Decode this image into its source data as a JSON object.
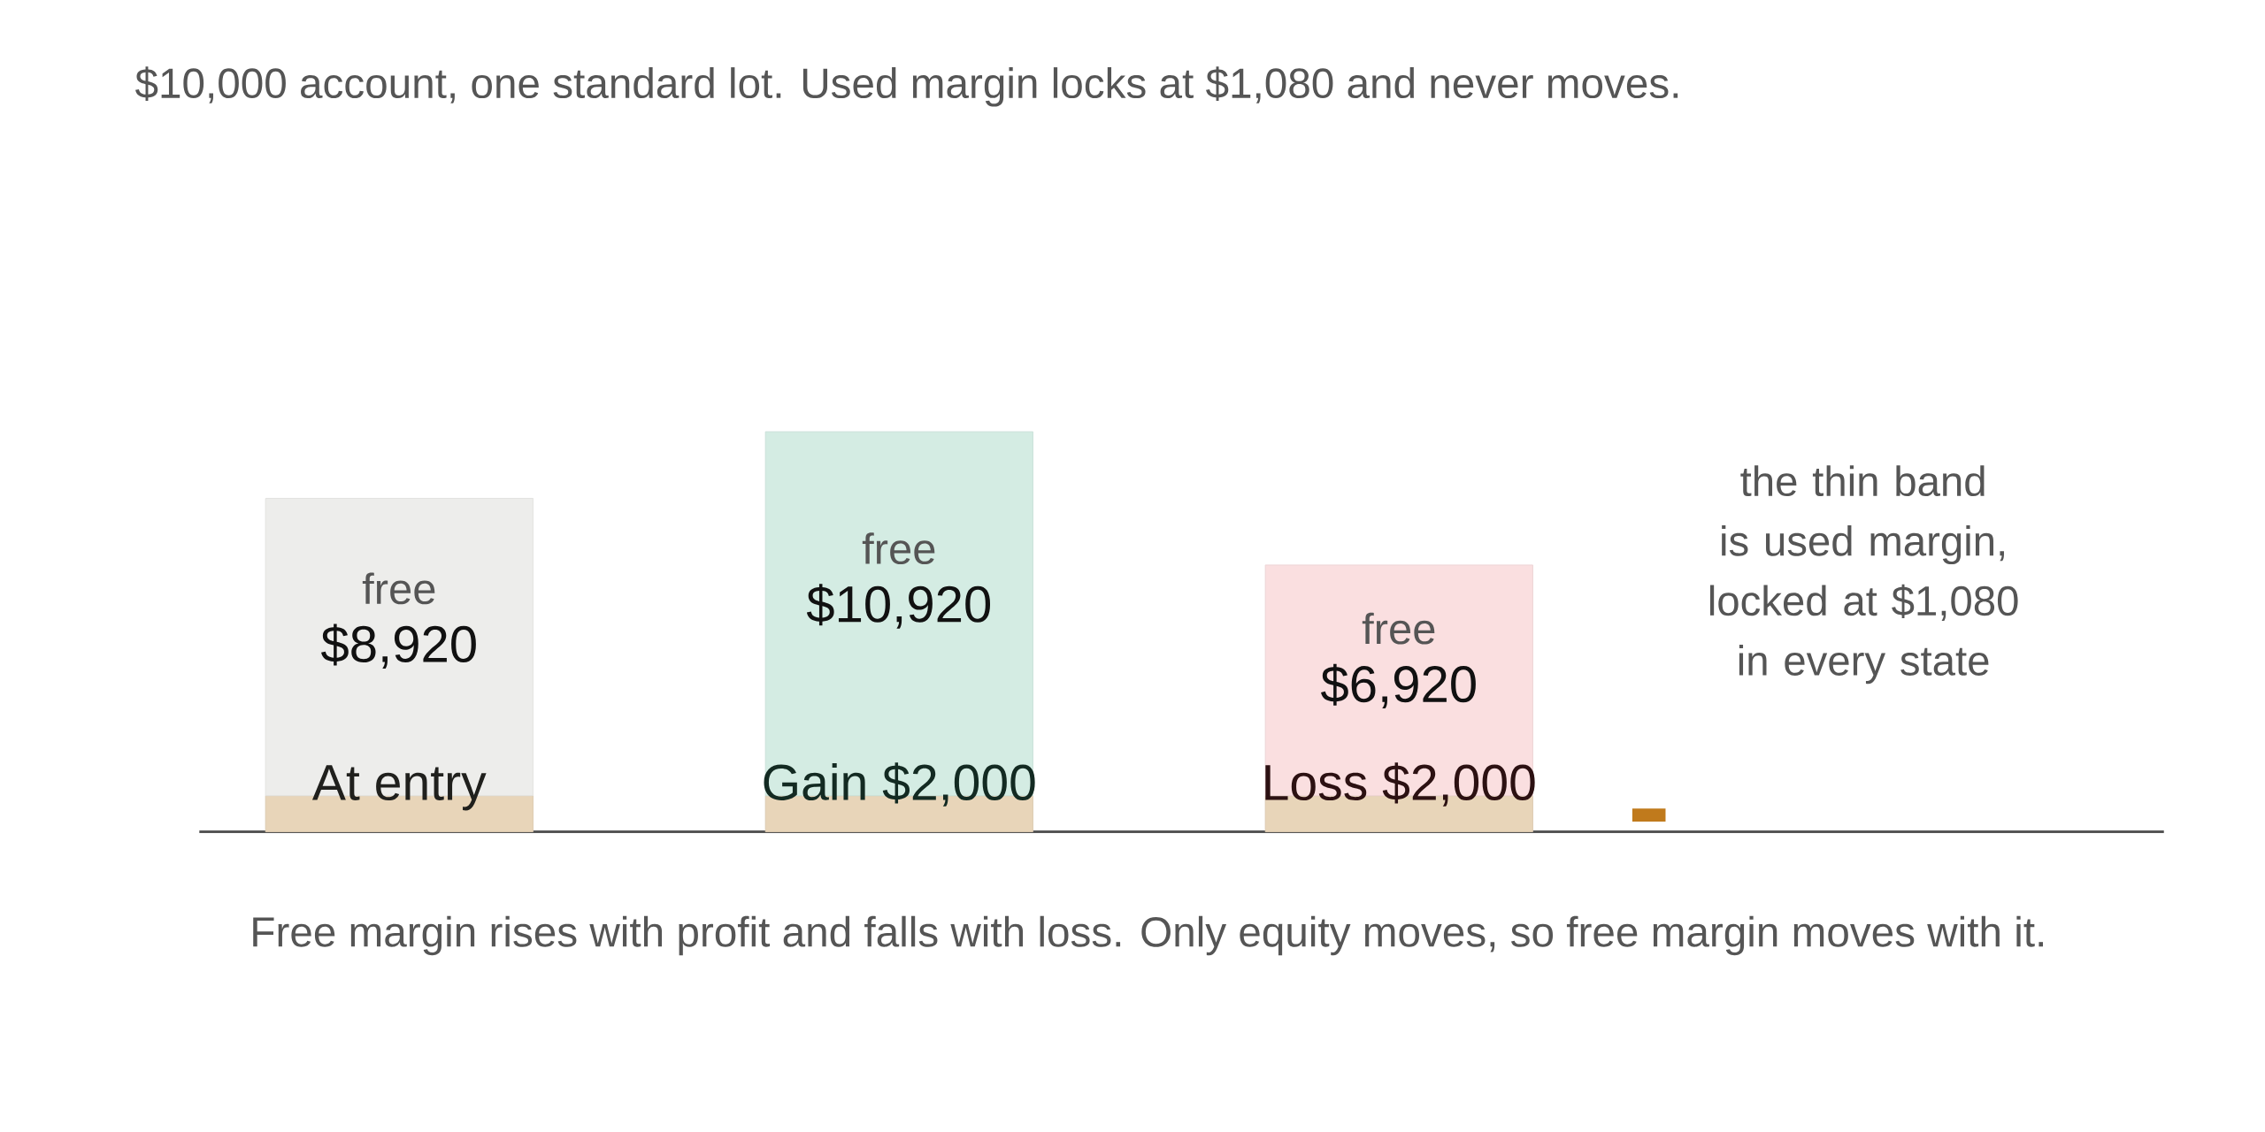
{
  "chart_data": {
    "type": "bar",
    "title": "$10,000 account, one standard lot. Used margin locks at $1,080 and never moves.",
    "stacked": true,
    "categories": [
      "At entry",
      "Gain $2,000",
      "Loss $2,000"
    ],
    "series": [
      {
        "color": "#e8d5b9",
        "values": [
          1080,
          1080,
          1080
        ]
      },
      {
        "name": "free",
        "colors": [
          "#ededeb",
          "#d4ece3",
          "#fadfe0"
        ],
        "values": [
          8920,
          10920,
          6920
        ],
        "value_labels": [
          "$8,920",
          "$10,920",
          "$6,920"
        ]
      }
    ],
    "annotations": [
      "the thin band is used margin, locked at $1,080 in every state",
      "Free margin rises with profit and falls with loss. Only equity moves, so free margin moves with it."
    ]
  }
}
